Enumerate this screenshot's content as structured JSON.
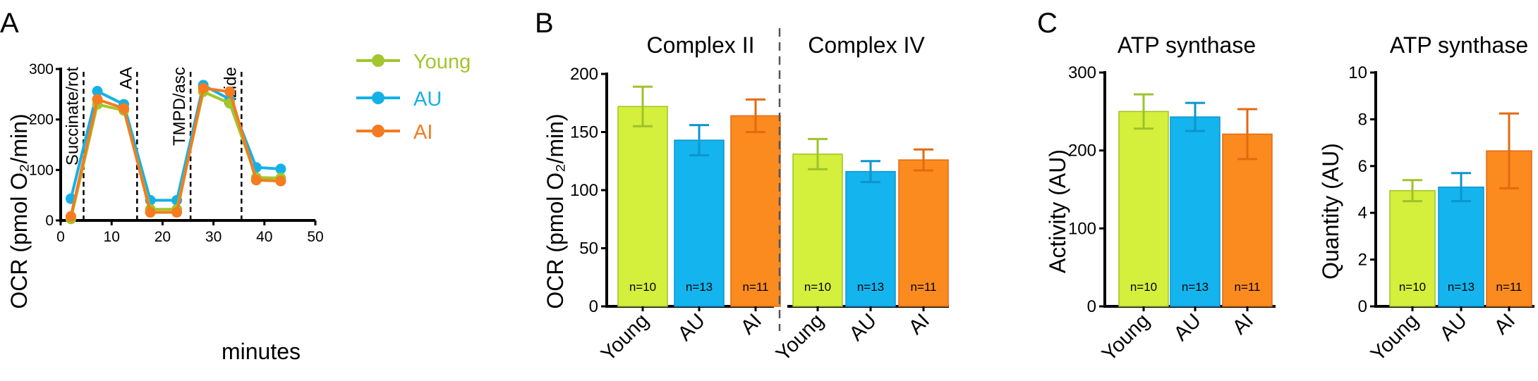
{
  "panels": {
    "A": {
      "letter": "A",
      "chart_data": {
        "type": "line",
        "xlabel": "minutes",
        "ylabel": "OCR (pmol O₂/min)",
        "xlim": [
          0,
          50
        ],
        "ylim": [
          0,
          300
        ],
        "xticks": [
          0,
          10,
          20,
          30,
          40,
          50
        ],
        "yticks": [
          0,
          100,
          200,
          300
        ],
        "legend_position": "top-right",
        "colors": {
          "Young": "#a2c62b",
          "AU": "#14b1e7",
          "AI": "#f47b20"
        },
        "series": [
          {
            "name": "AU",
            "x": [
              2,
              7.2,
              12.4,
              17.6,
              22.8,
              28,
              33.2,
              38.4,
              43.2
            ],
            "values": [
              43,
              256,
              230,
              40,
              40,
              268,
              240,
              105,
              102
            ]
          },
          {
            "name": "Young",
            "x": [
              2,
              7.2,
              12.4,
              17.6,
              22.8,
              28,
              33.2,
              38.4,
              43.2
            ],
            "values": [
              3,
              230,
              218,
              22,
              22,
              255,
              232,
              85,
              84
            ]
          },
          {
            "name": "AI",
            "x": [
              2,
              7.2,
              12.4,
              17.6,
              22.8,
              28,
              33.2,
              38.4,
              43.2
            ],
            "values": [
              8,
              240,
              222,
              16,
              16,
              262,
              255,
              80,
              78
            ]
          }
        ],
        "vlines": [
          {
            "x": 4.5,
            "label": "Succinate/rot"
          },
          {
            "x": 15,
            "label": "AA"
          },
          {
            "x": 25.5,
            "label": "TMPD/asc"
          },
          {
            "x": 35.5,
            "label": "Azide"
          }
        ]
      }
    },
    "B": {
      "letter": "B",
      "chart_data": {
        "type": "bar",
        "ylabel": "OCR (pmol O₂/min)",
        "ylim": [
          0,
          200
        ],
        "yticks": [
          0,
          50,
          100,
          150,
          200
        ],
        "groups": [
          {
            "title": "Complex II",
            "categories": [
              "Young",
              "AU",
              "AI"
            ],
            "values": [
              172,
              143,
              164
            ],
            "errors": [
              17,
              13,
              14
            ],
            "n_labels": [
              "n=10",
              "n=13",
              "n=11"
            ]
          },
          {
            "title": "Complex IV",
            "categories": [
              "Young",
              "AU",
              "AI"
            ],
            "values": [
              131,
              116,
              126
            ],
            "errors": [
              13,
              9,
              9
            ],
            "n_labels": [
              "n=10",
              "n=13",
              "n=11"
            ]
          }
        ]
      }
    },
    "C": {
      "letter": "C",
      "chart_data": [
        {
          "type": "bar",
          "title": "ATP synthase",
          "ylabel": "Activity (AU)",
          "ylim": [
            0,
            300
          ],
          "yticks": [
            0,
            100,
            200,
            300
          ],
          "categories": [
            "Young",
            "AU",
            "AI"
          ],
          "values": [
            250,
            243,
            221
          ],
          "errors": [
            22,
            18,
            32
          ],
          "n_labels": [
            "n=10",
            "n=13",
            "n=11"
          ]
        },
        {
          "type": "bar",
          "title": "ATP synthase",
          "ylabel": "Quantity (AU)",
          "ylim": [
            0,
            10
          ],
          "yticks": [
            0,
            2,
            4,
            6,
            8,
            10
          ],
          "categories": [
            "Young",
            "AU",
            "AI"
          ],
          "values": [
            4.95,
            5.1,
            6.65
          ],
          "errors": [
            0.45,
            0.6,
            1.6
          ],
          "n_labels": [
            "n=10",
            "n=13",
            "n=11"
          ]
        }
      ]
    }
  },
  "colors": {
    "Young": {
      "fill": "#d4ef3c",
      "stroke": "#9fc22a"
    },
    "AU": {
      "fill": "#14b4ee",
      "stroke": "#0b95cf"
    },
    "AI": {
      "fill": "#fb8a1f",
      "stroke": "#e26a10"
    }
  }
}
